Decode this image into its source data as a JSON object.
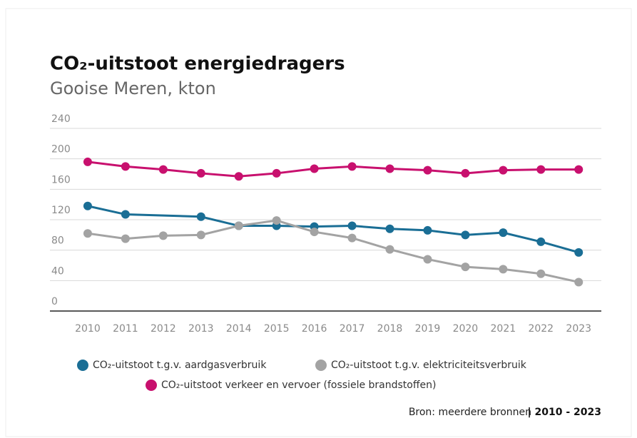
{
  "chart_data": {
    "type": "line",
    "title": "CO₂-uitstoot energiedragers",
    "subtitle": "Gooise Meren, kton",
    "source": "Bron: meerdere bronnen",
    "period": "| 2010 - 2023",
    "xlim": [
      2009,
      2023.6
    ],
    "xticks": [
      2010,
      2011,
      2012,
      2013,
      2014,
      2015,
      2016,
      2017,
      2018,
      2019,
      2020,
      2021,
      2022,
      2023
    ],
    "ylim": [
      0,
      240
    ],
    "yticks": [
      0,
      40,
      80,
      120,
      160,
      200,
      240
    ],
    "grid": true,
    "series": [
      {
        "name": "CO₂-uitstoot t.g.v. aardgasverbruik",
        "color": "#1a6e95",
        "x": [
          2010,
          2011,
          2013,
          2014,
          2015,
          2016,
          2017,
          2018,
          2019,
          2020,
          2021,
          2022,
          2023
        ],
        "values": [
          138,
          127,
          124,
          112,
          112,
          111,
          112,
          108,
          106,
          100,
          103,
          91,
          77
        ]
      },
      {
        "name": "CO₂-uitstoot t.g.v. elektriciteitsverbruik",
        "color": "#a3a3a3",
        "x": [
          2010,
          2011,
          2012,
          2013,
          2014,
          2015,
          2016,
          2017,
          2018,
          2019,
          2020,
          2021,
          2022,
          2023
        ],
        "values": [
          102,
          95,
          99,
          100,
          112,
          119,
          104,
          96,
          81,
          68,
          58,
          55,
          49,
          38
        ]
      },
      {
        "name": "CO₂-uitstoot verkeer en vervoer (fossiele brandstoffen)",
        "color": "#c8106e",
        "x": [
          2010,
          2011,
          2012,
          2013,
          2014,
          2015,
          2016,
          2017,
          2018,
          2019,
          2020,
          2021,
          2022,
          2023
        ],
        "values": [
          196,
          190,
          186,
          181,
          177,
          181,
          187,
          190,
          187,
          185,
          181,
          185,
          186,
          186
        ]
      }
    ]
  }
}
